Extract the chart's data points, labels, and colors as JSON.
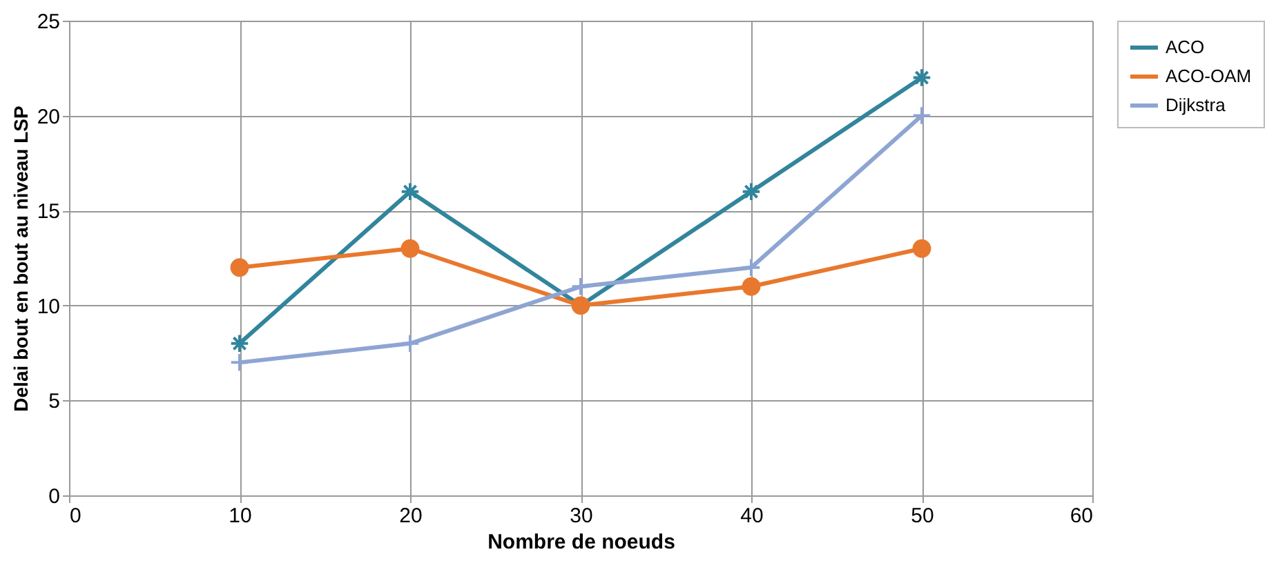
{
  "chart_data": {
    "type": "line",
    "xlabel": "Nombre de noeuds",
    "ylabel": "Delai bout en bout au niveau LSP",
    "x": [
      10,
      20,
      30,
      40,
      50
    ],
    "series": [
      {
        "name": "ACO",
        "color": "#31859c",
        "values": [
          8,
          16,
          10,
          16,
          22
        ],
        "marker": "cross"
      },
      {
        "name": "ACO-OAM",
        "color": "#e8782d",
        "values": [
          12,
          13,
          10,
          11,
          13
        ],
        "marker": "circle"
      },
      {
        "name": "Dijkstra",
        "color": "#8ea5d3",
        "values": [
          7,
          8,
          11,
          12,
          20
        ],
        "marker": "cross"
      }
    ],
    "xlim": [
      0,
      60
    ],
    "xticks": [
      0,
      10,
      20,
      30,
      40,
      50,
      60
    ],
    "ylim": [
      0,
      25
    ],
    "yticks": [
      0,
      5,
      10,
      15,
      20,
      25
    ],
    "grid": true,
    "legend": "right",
    "line_style": "solid"
  }
}
